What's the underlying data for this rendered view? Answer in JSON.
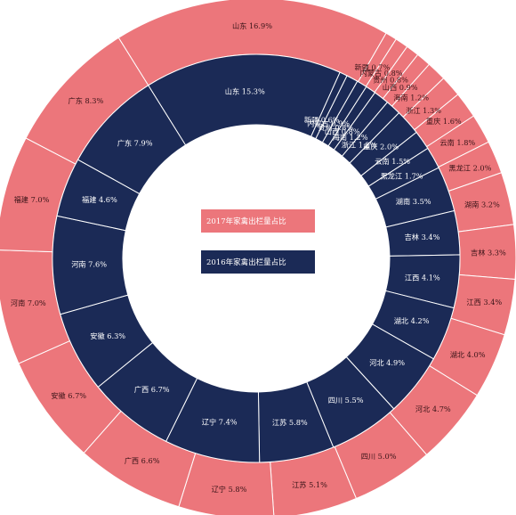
{
  "chart_data": {
    "type": "pie",
    "style": "nested-donut",
    "colors": {
      "outer": "#ec767b",
      "inner": "#1b2a56",
      "separator": "#ffffff"
    },
    "legend": [
      {
        "label": "2017年家禽出栏量占比",
        "color": "#ec767b"
      },
      {
        "label": "2016年家禽出栏量占比",
        "color": "#1b2a56"
      }
    ],
    "legend_placement": "center",
    "series": [
      {
        "name": "2017年家禽出栏量占比",
        "ring": "outer",
        "slices": [
          {
            "label": "山东",
            "value": 16.9,
            "text": "山东 16.9%"
          },
          {
            "label": "新疆",
            "value": 0.7,
            "text": "新疆 0.7%"
          },
          {
            "label": "内蒙古",
            "value": 0.8,
            "text": "内蒙古 0.8%"
          },
          {
            "label": "贵州",
            "value": 0.8,
            "text": "贵州 0.8%"
          },
          {
            "label": "山西",
            "value": 0.9,
            "text": "山西 0.9%"
          },
          {
            "label": "海南",
            "value": 1.2,
            "text": "海南 1.2%"
          },
          {
            "label": "浙江",
            "value": 1.3,
            "text": "浙江 1.3%"
          },
          {
            "label": "重庆",
            "value": 1.6,
            "text": "重庆 1.6%"
          },
          {
            "label": "云南",
            "value": 1.8,
            "text": "云南 1.8%"
          },
          {
            "label": "黑龙江",
            "value": 2.0,
            "text": "黑龙江 2.0%"
          },
          {
            "label": "湖南",
            "value": 3.2,
            "text": "湖南 3.2%"
          },
          {
            "label": "吉林",
            "value": 3.3,
            "text": "吉林 3.3%"
          },
          {
            "label": "江西",
            "value": 3.4,
            "text": "江西 3.4%"
          },
          {
            "label": "湖北",
            "value": 4.0,
            "text": "湖北 4.0%"
          },
          {
            "label": "河北",
            "value": 4.7,
            "text": "河北 4.7%"
          },
          {
            "label": "四川",
            "value": 5.0,
            "text": "四川 5.0%"
          },
          {
            "label": "江苏",
            "value": 5.1,
            "text": "江苏 5.1%"
          },
          {
            "label": "辽宁",
            "value": 5.8,
            "text": "辽宁 5.8%"
          },
          {
            "label": "广西",
            "value": 6.6,
            "text": "广西 6.6%"
          },
          {
            "label": "安徽",
            "value": 6.7,
            "text": "安徽 6.7%"
          },
          {
            "label": "河南",
            "value": 7.0,
            "text": "河南 7.0%"
          },
          {
            "label": "福建",
            "value": 7.0,
            "text": "福建 7.0%"
          },
          {
            "label": "广东",
            "value": 8.3,
            "text": "广东 8.3%"
          }
        ]
      },
      {
        "name": "2016年家禽出栏量占比",
        "ring": "inner",
        "slices": [
          {
            "label": "山东",
            "value": 15.3,
            "text": "山东 15.3%"
          },
          {
            "label": "新疆",
            "value": 0.6,
            "text": "新疆 0.6%"
          },
          {
            "label": "内蒙古",
            "value": 0.9,
            "text": "内蒙古 0.9%"
          },
          {
            "label": "贵州",
            "value": 0.8,
            "text": "贵州 0.8%"
          },
          {
            "label": "山西",
            "value": 0.8,
            "text": "山西 0.8%"
          },
          {
            "label": "海南",
            "value": 1.2,
            "text": "海南 1.2%"
          },
          {
            "label": "浙江",
            "value": 1.2,
            "text": "浙江 1.2%"
          },
          {
            "label": "重庆",
            "value": 2.0,
            "text": "重庆 2.0%"
          },
          {
            "label": "云南",
            "value": 1.5,
            "text": "云南 1.5%"
          },
          {
            "label": "黑龙江",
            "value": 1.7,
            "text": "黑龙江 1.7%"
          },
          {
            "label": "湖南",
            "value": 3.5,
            "text": "湖南 3.5%"
          },
          {
            "label": "吉林",
            "value": 3.4,
            "text": "吉林 3.4%"
          },
          {
            "label": "江西",
            "value": 4.1,
            "text": "江西 4.1%"
          },
          {
            "label": "湖北",
            "value": 4.2,
            "text": "湖北 4.2%"
          },
          {
            "label": "河北",
            "value": 4.9,
            "text": "河北 4.9%"
          },
          {
            "label": "四川",
            "value": 5.5,
            "text": "四川 5.5%"
          },
          {
            "label": "江苏",
            "value": 5.8,
            "text": "江苏 5.8%"
          },
          {
            "label": "辽宁",
            "value": 7.4,
            "text": "辽宁 7.4%"
          },
          {
            "label": "广西",
            "value": 6.7,
            "text": "广西 6.7%"
          },
          {
            "label": "安徽",
            "value": 6.3,
            "text": "安徽 6.3%"
          },
          {
            "label": "河南",
            "value": 7.6,
            "text": "河南 7.6%"
          },
          {
            "label": "福建",
            "value": 4.6,
            "text": "福建 4.6%"
          },
          {
            "label": "广东",
            "value": 7.9,
            "text": "广东 7.9%"
          }
        ]
      }
    ]
  }
}
